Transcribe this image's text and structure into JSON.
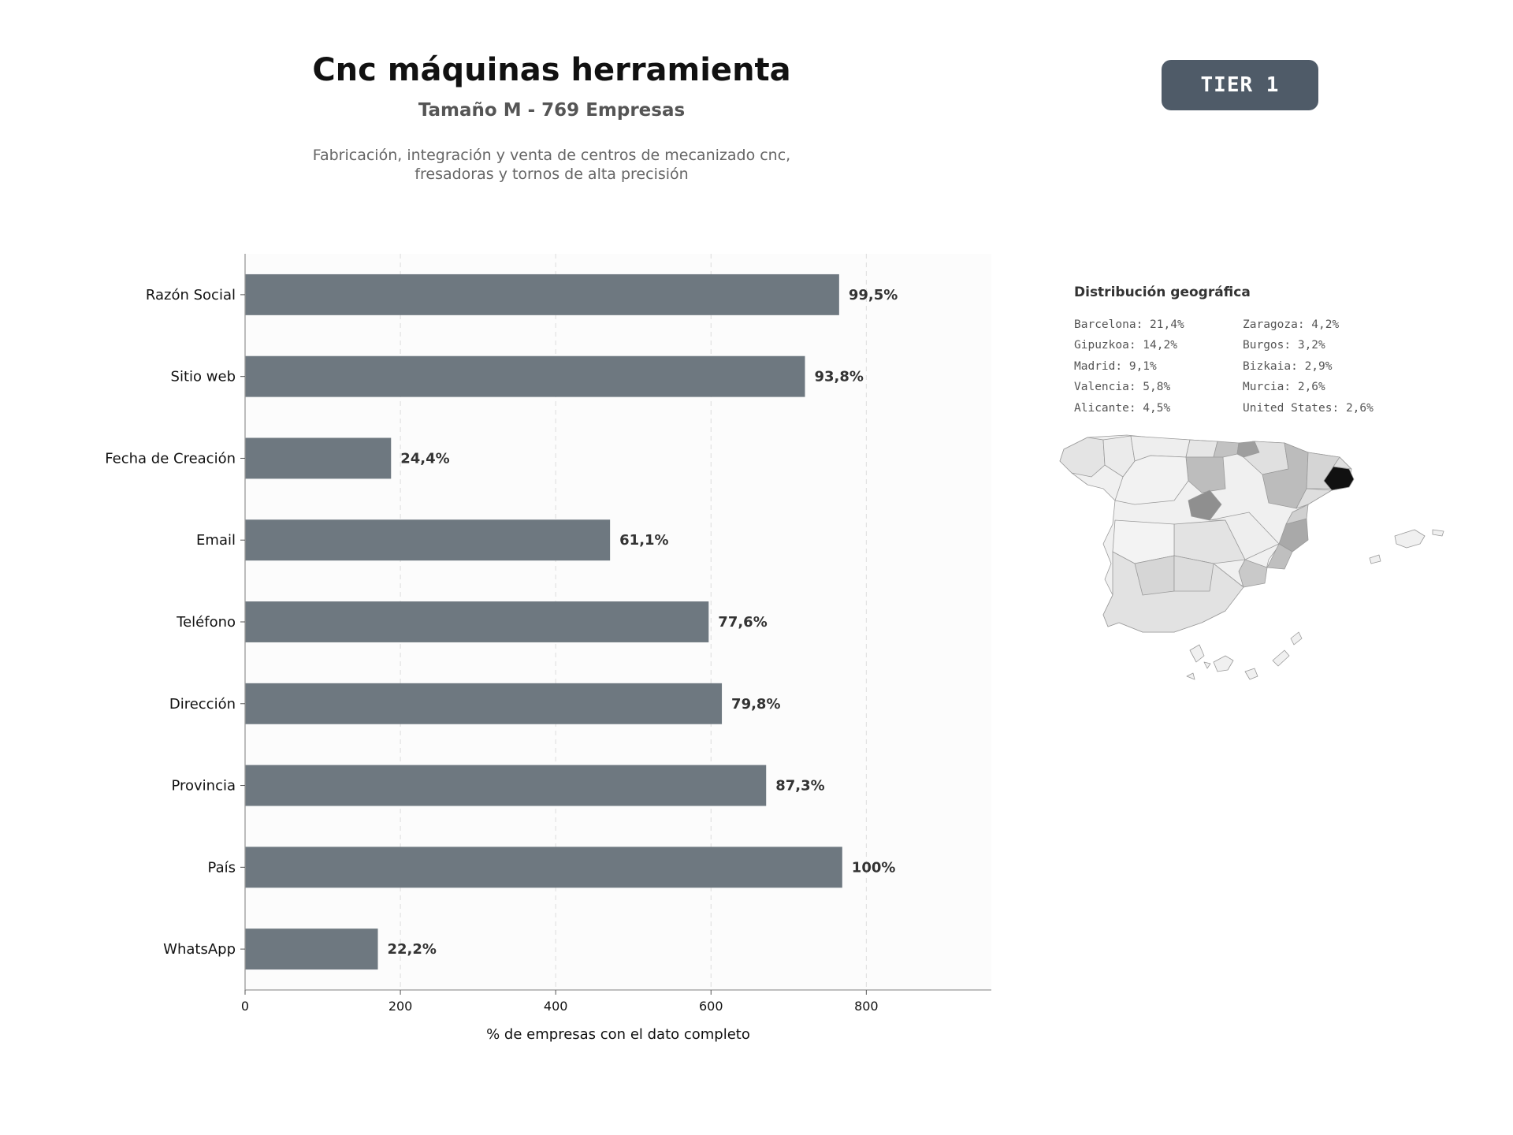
{
  "header": {
    "title": "Cnc máquinas herramienta",
    "subtitle": "Tamaño M - 769 Empresas",
    "description_lines": [
      "Fabricación, integración y venta de centros de mecanizado cnc,",
      "fresadoras y tornos de alta precisión"
    ],
    "tier_badge": "TIER 1"
  },
  "colors": {
    "bar": "#6e7880",
    "badge": "#4f5b68",
    "plot_background": "#fcfcfc",
    "map_highlight": "#111111"
  },
  "chart_data": {
    "type": "bar",
    "orientation": "horizontal",
    "categories": [
      "Razón Social",
      "Sitio web",
      "Fecha de Creación",
      "Email",
      "Teléfono",
      "Dirección",
      "Provincia",
      "País",
      "WhatsApp"
    ],
    "values": [
      765,
      721,
      188,
      470,
      597,
      614,
      671,
      769,
      171
    ],
    "data_labels": [
      "99,5%",
      "93,8%",
      "24,4%",
      "61,1%",
      "77,6%",
      "79,8%",
      "87,3%",
      "100%",
      "22,2%"
    ],
    "xlabel": "% de empresas con el dato completo",
    "ylabel": "",
    "xlim": [
      0,
      961
    ],
    "xticks": [
      0,
      200,
      400,
      600,
      800
    ],
    "xtick_labels": [
      "0",
      "200",
      "400",
      "600",
      "800"
    ],
    "grid": "vertical dashed"
  },
  "geo": {
    "title": "Distribución geográfica",
    "entries": [
      "Barcelona: 21,4%",
      "Zaragoza: 4,2%",
      "Gipuzkoa: 14,2%",
      "Burgos: 3,2%",
      "Madrid: 9,1%",
      "Bizkaia: 2,9%",
      "Valencia: 5,8%",
      "Murcia: 2,6%",
      "Alicante: 4,5%",
      "United States: 2,6%"
    ],
    "map_icon": "spain-provinces-map"
  }
}
